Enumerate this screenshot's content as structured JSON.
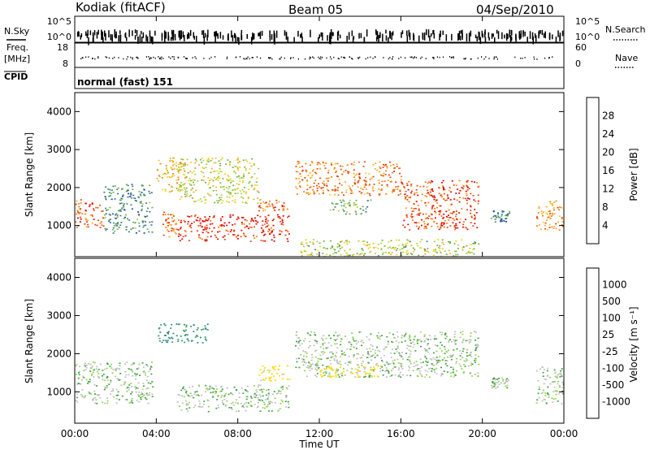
{
  "header": {
    "station": "Kodiak (fitACF)",
    "beam": "Beam 05",
    "date": "04/Sep/2010"
  },
  "strip": {
    "left_top_label": "N.Sky",
    "left_top_ticks": [
      "10^5",
      "10^0"
    ],
    "right_top_label": "N.Search",
    "right_top_ticks": [
      "10^5",
      "10^0"
    ],
    "freq_label_line1": "Freq.",
    "freq_label_line2": "[MHz]",
    "freq_ticks": [
      "18",
      "8"
    ],
    "nave_label": "Nave",
    "nave_ticks": [
      "60",
      "0"
    ],
    "cpid_label": "CPID",
    "cpid_text": "normal (fast) 151"
  },
  "colors": {
    "power": [
      "#1a1aff",
      "#1f3fa8",
      "#3a6aa8",
      "#3d8a6a",
      "#6fb04a",
      "#a8d040",
      "#f0d020",
      "#f5a820",
      "#f07a10",
      "#e84010",
      "#dd0000"
    ],
    "velocity": [
      "#ff0000",
      "#ff6a00",
      "#ff9b00",
      "#ffd700",
      "#bebebe",
      "#bebebe",
      "#8fd64a",
      "#3ca040",
      "#2a8a80",
      "#2a4fa0",
      "#1a2fbf"
    ]
  },
  "chart_data": [
    {
      "type": "heatmap",
      "title": "",
      "xlabel": "Time UT",
      "ylabel": "Slant Range [km]",
      "xlim": [
        "00:00",
        "24:00"
      ],
      "ylim": [
        180,
        4500
      ],
      "x_ticks": [
        "00:00",
        "04:00",
        "08:00",
        "12:00",
        "16:00",
        "20:00",
        "00:00"
      ],
      "y_ticks": [
        1000,
        2000,
        3000,
        4000
      ],
      "colorbar": {
        "label": "Power [dB]",
        "ticks": [
          4,
          8,
          12,
          16,
          20,
          24,
          28
        ],
        "range": [
          0,
          30
        ]
      },
      "features": [
        {
          "start_hr": 0.0,
          "end_hr": 1.4,
          "range_lo_km": 950,
          "range_hi_km": 1700,
          "power_db": 26
        },
        {
          "start_hr": 1.4,
          "end_hr": 3.8,
          "range_lo_km": 800,
          "range_hi_km": 2100,
          "power_db": 9
        },
        {
          "start_hr": 4.0,
          "end_hr": 5.4,
          "range_lo_km": 1900,
          "range_hi_km": 2800,
          "power_db": 20
        },
        {
          "start_hr": 4.3,
          "end_hr": 5.0,
          "range_lo_km": 700,
          "range_hi_km": 1400,
          "power_db": 24
        },
        {
          "start_hr": 5.0,
          "end_hr": 9.0,
          "range_lo_km": 1600,
          "range_hi_km": 2800,
          "power_db": 16
        },
        {
          "start_hr": 5.0,
          "end_hr": 10.5,
          "range_lo_km": 600,
          "range_hi_km": 1300,
          "power_db": 29
        },
        {
          "start_hr": 9.0,
          "end_hr": 10.5,
          "range_lo_km": 1400,
          "range_hi_km": 1700,
          "power_db": 25
        },
        {
          "start_hr": 10.8,
          "end_hr": 16.0,
          "range_lo_km": 1800,
          "range_hi_km": 2700,
          "power_db": 24
        },
        {
          "start_hr": 12.5,
          "end_hr": 14.5,
          "range_lo_km": 1300,
          "range_hi_km": 1700,
          "power_db": 12
        },
        {
          "start_hr": 16.0,
          "end_hr": 19.8,
          "range_lo_km": 900,
          "range_hi_km": 2200,
          "power_db": 27
        },
        {
          "start_hr": 11.0,
          "end_hr": 19.8,
          "range_lo_km": 180,
          "range_hi_km": 650,
          "power_db": 15
        },
        {
          "start_hr": 20.4,
          "end_hr": 21.3,
          "range_lo_km": 1100,
          "range_hi_km": 1400,
          "power_db": 7
        },
        {
          "start_hr": 22.6,
          "end_hr": 24.0,
          "range_lo_km": 900,
          "range_hi_km": 1700,
          "power_db": 22
        }
      ]
    },
    {
      "type": "heatmap",
      "title": "",
      "xlabel": "Time UT",
      "ylabel": "Slant Range [km]",
      "xlim": [
        "00:00",
        "24:00"
      ],
      "ylim": [
        180,
        4500
      ],
      "x_ticks": [
        "00:00",
        "04:00",
        "08:00",
        "12:00",
        "16:00",
        "20:00",
        "00:00"
      ],
      "y_ticks": [
        1000,
        2000,
        3000,
        4000
      ],
      "colorbar": {
        "label": "Velocity [m s⁻¹]",
        "ticks": [
          1000,
          500,
          100,
          25,
          -25,
          -100,
          -500,
          -1000
        ]
      },
      "features": [
        {
          "start_hr": 0.0,
          "end_hr": 3.8,
          "range_lo_km": 700,
          "range_hi_km": 1800,
          "velocity_ms": 0
        },
        {
          "start_hr": 4.0,
          "end_hr": 6.5,
          "range_lo_km": 2300,
          "range_hi_km": 2800,
          "velocity_ms": 120
        },
        {
          "start_hr": 5.0,
          "end_hr": 10.5,
          "range_lo_km": 500,
          "range_hi_km": 1200,
          "velocity_ms": 0
        },
        {
          "start_hr": 9.0,
          "end_hr": 10.5,
          "range_lo_km": 1300,
          "range_hi_km": 1700,
          "velocity_ms": -150
        },
        {
          "start_hr": 10.8,
          "end_hr": 19.8,
          "range_lo_km": 1400,
          "range_hi_km": 2600,
          "velocity_ms": 0
        },
        {
          "start_hr": 12.0,
          "end_hr": 15.0,
          "range_lo_km": 1400,
          "range_hi_km": 1700,
          "velocity_ms": -300
        },
        {
          "start_hr": 20.4,
          "end_hr": 21.3,
          "range_lo_km": 1100,
          "range_hi_km": 1400,
          "velocity_ms": 0
        },
        {
          "start_hr": 22.6,
          "end_hr": 24.0,
          "range_lo_km": 700,
          "range_hi_km": 1700,
          "velocity_ms": 0
        }
      ]
    }
  ]
}
